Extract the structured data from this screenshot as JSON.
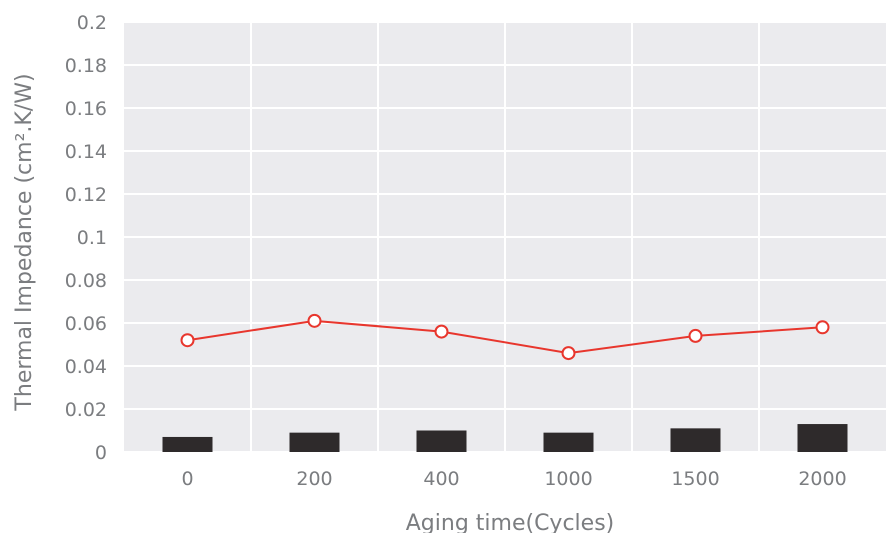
{
  "chart_data": {
    "type": "bar+line",
    "title": "",
    "xlabel": "Aging time(Cycles)",
    "ylabel": "Thermal Impedance (cm².K/W)",
    "categories": [
      "0",
      "200",
      "400",
      "1000",
      "1500",
      "2000"
    ],
    "ylim": [
      0,
      0.2
    ],
    "yticks": [
      "0",
      "0.02",
      "0.04",
      "0.06",
      "0.08",
      "0.1",
      "0.12",
      "0.14",
      "0.16",
      "0.18",
      "0.2"
    ],
    "grid": true,
    "legend": "none",
    "series": [
      {
        "type": "bar",
        "values": [
          0.007,
          0.009,
          0.01,
          0.009,
          0.011,
          0.013
        ],
        "color": "#2e2a2b"
      },
      {
        "type": "line",
        "values": [
          0.052,
          0.061,
          0.056,
          0.046,
          0.054,
          0.058
        ],
        "color": "#e8362d",
        "marker": "open-circle"
      }
    ],
    "colors": {
      "background": "#ebebee",
      "grid": "#ffffff",
      "text": "#7b7d80"
    }
  }
}
